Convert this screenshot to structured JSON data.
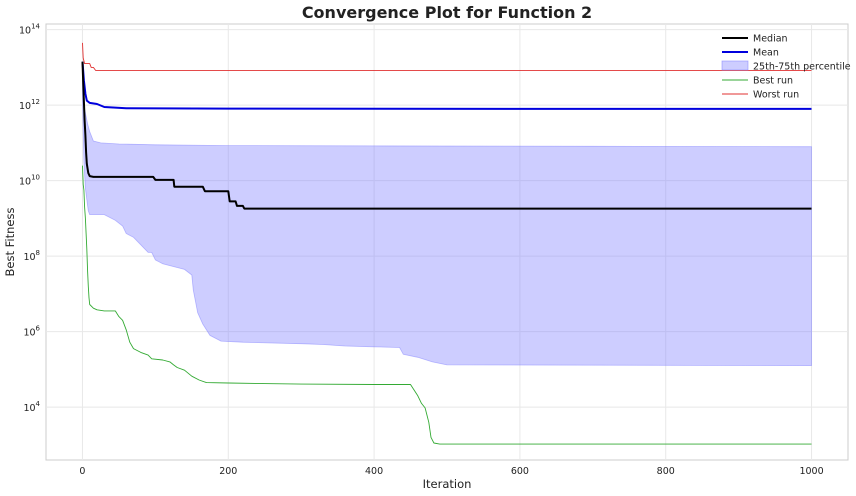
{
  "chart_data": {
    "type": "line",
    "title": "Convergence Plot for Function 2",
    "xlabel": "Iteration",
    "ylabel": "Best Fitness",
    "xlim": [
      -50,
      1050
    ],
    "ylim_log10": [
      2.6,
      14.15
    ],
    "yscale": "log",
    "grid": true,
    "legend_position": "top-right",
    "x_ticks": [
      0,
      200,
      400,
      600,
      800,
      1000
    ],
    "y_ticks": [
      {
        "exp": 4,
        "label": "10",
        "sup": "4"
      },
      {
        "exp": 6,
        "label": "10",
        "sup": "6"
      },
      {
        "exp": 8,
        "label": "10",
        "sup": "8"
      },
      {
        "exp": 10,
        "label": "10",
        "sup": "10"
      },
      {
        "exp": 12,
        "label": "10",
        "sup": "12"
      },
      {
        "exp": 14,
        "label": "10",
        "sup": "14"
      }
    ],
    "band": {
      "name": "25th-75th percentile",
      "color": "#7b7bff",
      "upper": [
        [
          0,
          13.0
        ],
        [
          3,
          11.9
        ],
        [
          5,
          11.7
        ],
        [
          7,
          11.5
        ],
        [
          10,
          11.3
        ],
        [
          15,
          11.05
        ],
        [
          25,
          11.0
        ],
        [
          50,
          10.97
        ],
        [
          100,
          10.95
        ],
        [
          200,
          10.93
        ],
        [
          400,
          10.92
        ],
        [
          700,
          10.91
        ],
        [
          1000,
          10.9
        ]
      ],
      "lower": [
        [
          0,
          12.2
        ],
        [
          2,
          10.5
        ],
        [
          4,
          9.8
        ],
        [
          6,
          9.5
        ],
        [
          8,
          9.2
        ],
        [
          10,
          9.1
        ],
        [
          30,
          9.1
        ],
        [
          45,
          8.95
        ],
        [
          55,
          8.8
        ],
        [
          60,
          8.6
        ],
        [
          70,
          8.5
        ],
        [
          80,
          8.3
        ],
        [
          90,
          8.1
        ],
        [
          95,
          8.1
        ],
        [
          100,
          7.9
        ],
        [
          105,
          7.85
        ],
        [
          110,
          7.8
        ],
        [
          120,
          7.75
        ],
        [
          130,
          7.7
        ],
        [
          140,
          7.65
        ],
        [
          150,
          7.5
        ],
        [
          152,
          7.1
        ],
        [
          158,
          6.5
        ],
        [
          165,
          6.2
        ],
        [
          175,
          5.9
        ],
        [
          190,
          5.75
        ],
        [
          220,
          5.72
        ],
        [
          260,
          5.7
        ],
        [
          300,
          5.68
        ],
        [
          330,
          5.66
        ],
        [
          360,
          5.62
        ],
        [
          400,
          5.6
        ],
        [
          435,
          5.58
        ],
        [
          440,
          5.4
        ],
        [
          460,
          5.32
        ],
        [
          480,
          5.2
        ],
        [
          500,
          5.12
        ],
        [
          1000,
          5.1
        ]
      ]
    },
    "series": [
      {
        "name": "Median",
        "color": "#000000",
        "width": 2,
        "values": [
          [
            0,
            13.15
          ],
          [
            1,
            12.6
          ],
          [
            2,
            12.1
          ],
          [
            3,
            11.6
          ],
          [
            4,
            11.2
          ],
          [
            5,
            10.75
          ],
          [
            6,
            10.45
          ],
          [
            8,
            10.2
          ],
          [
            10,
            10.12
          ],
          [
            15,
            10.1
          ],
          [
            50,
            10.1
          ],
          [
            97,
            10.1
          ],
          [
            100,
            10.02
          ],
          [
            125,
            10.02
          ],
          [
            126,
            9.84
          ],
          [
            165,
            9.84
          ],
          [
            168,
            9.72
          ],
          [
            200,
            9.72
          ],
          [
            202,
            9.45
          ],
          [
            210,
            9.45
          ],
          [
            212,
            9.33
          ],
          [
            220,
            9.33
          ],
          [
            222,
            9.26
          ],
          [
            1000,
            9.26
          ]
        ]
      },
      {
        "name": "Mean",
        "color": "#0000dd",
        "width": 2,
        "values": [
          [
            0,
            13.15
          ],
          [
            2,
            12.65
          ],
          [
            4,
            12.3
          ],
          [
            6,
            12.12
          ],
          [
            10,
            12.06
          ],
          [
            20,
            12.03
          ],
          [
            30,
            11.95
          ],
          [
            60,
            11.92
          ],
          [
            200,
            11.91
          ],
          [
            600,
            11.9
          ],
          [
            1000,
            11.9
          ]
        ]
      },
      {
        "name": "Best run",
        "color": "#33aa33",
        "width": 1,
        "values": [
          [
            0,
            10.4
          ],
          [
            1,
            9.9
          ],
          [
            2,
            9.75
          ],
          [
            3,
            9.3
          ],
          [
            4,
            9.0
          ],
          [
            5,
            8.6
          ],
          [
            6,
            8.2
          ],
          [
            7,
            7.6
          ],
          [
            8,
            7.2
          ],
          [
            9,
            6.9
          ],
          [
            10,
            6.72
          ],
          [
            15,
            6.62
          ],
          [
            20,
            6.58
          ],
          [
            30,
            6.55
          ],
          [
            45,
            6.55
          ],
          [
            50,
            6.4
          ],
          [
            55,
            6.3
          ],
          [
            60,
            6.05
          ],
          [
            65,
            5.72
          ],
          [
            70,
            5.55
          ],
          [
            80,
            5.45
          ],
          [
            90,
            5.38
          ],
          [
            95,
            5.28
          ],
          [
            110,
            5.25
          ],
          [
            120,
            5.2
          ],
          [
            125,
            5.12
          ],
          [
            130,
            5.05
          ],
          [
            140,
            4.98
          ],
          [
            150,
            4.82
          ],
          [
            160,
            4.72
          ],
          [
            170,
            4.65
          ],
          [
            200,
            4.64
          ],
          [
            300,
            4.61
          ],
          [
            400,
            4.6
          ],
          [
            450,
            4.6
          ],
          [
            460,
            4.3
          ],
          [
            465,
            4.1
          ],
          [
            470,
            3.98
          ],
          [
            475,
            3.6
          ],
          [
            478,
            3.2
          ],
          [
            482,
            3.05
          ],
          [
            490,
            3.02
          ],
          [
            600,
            3.02
          ],
          [
            1000,
            3.02
          ]
        ]
      },
      {
        "name": "Worst run",
        "color": "#e03030",
        "width": 1,
        "values": [
          [
            0,
            13.65
          ],
          [
            1,
            13.25
          ],
          [
            3,
            13.1
          ],
          [
            10,
            13.1
          ],
          [
            12,
            13.0
          ],
          [
            15,
            13.0
          ],
          [
            18,
            12.92
          ],
          [
            1000,
            12.92
          ]
        ]
      }
    ]
  }
}
